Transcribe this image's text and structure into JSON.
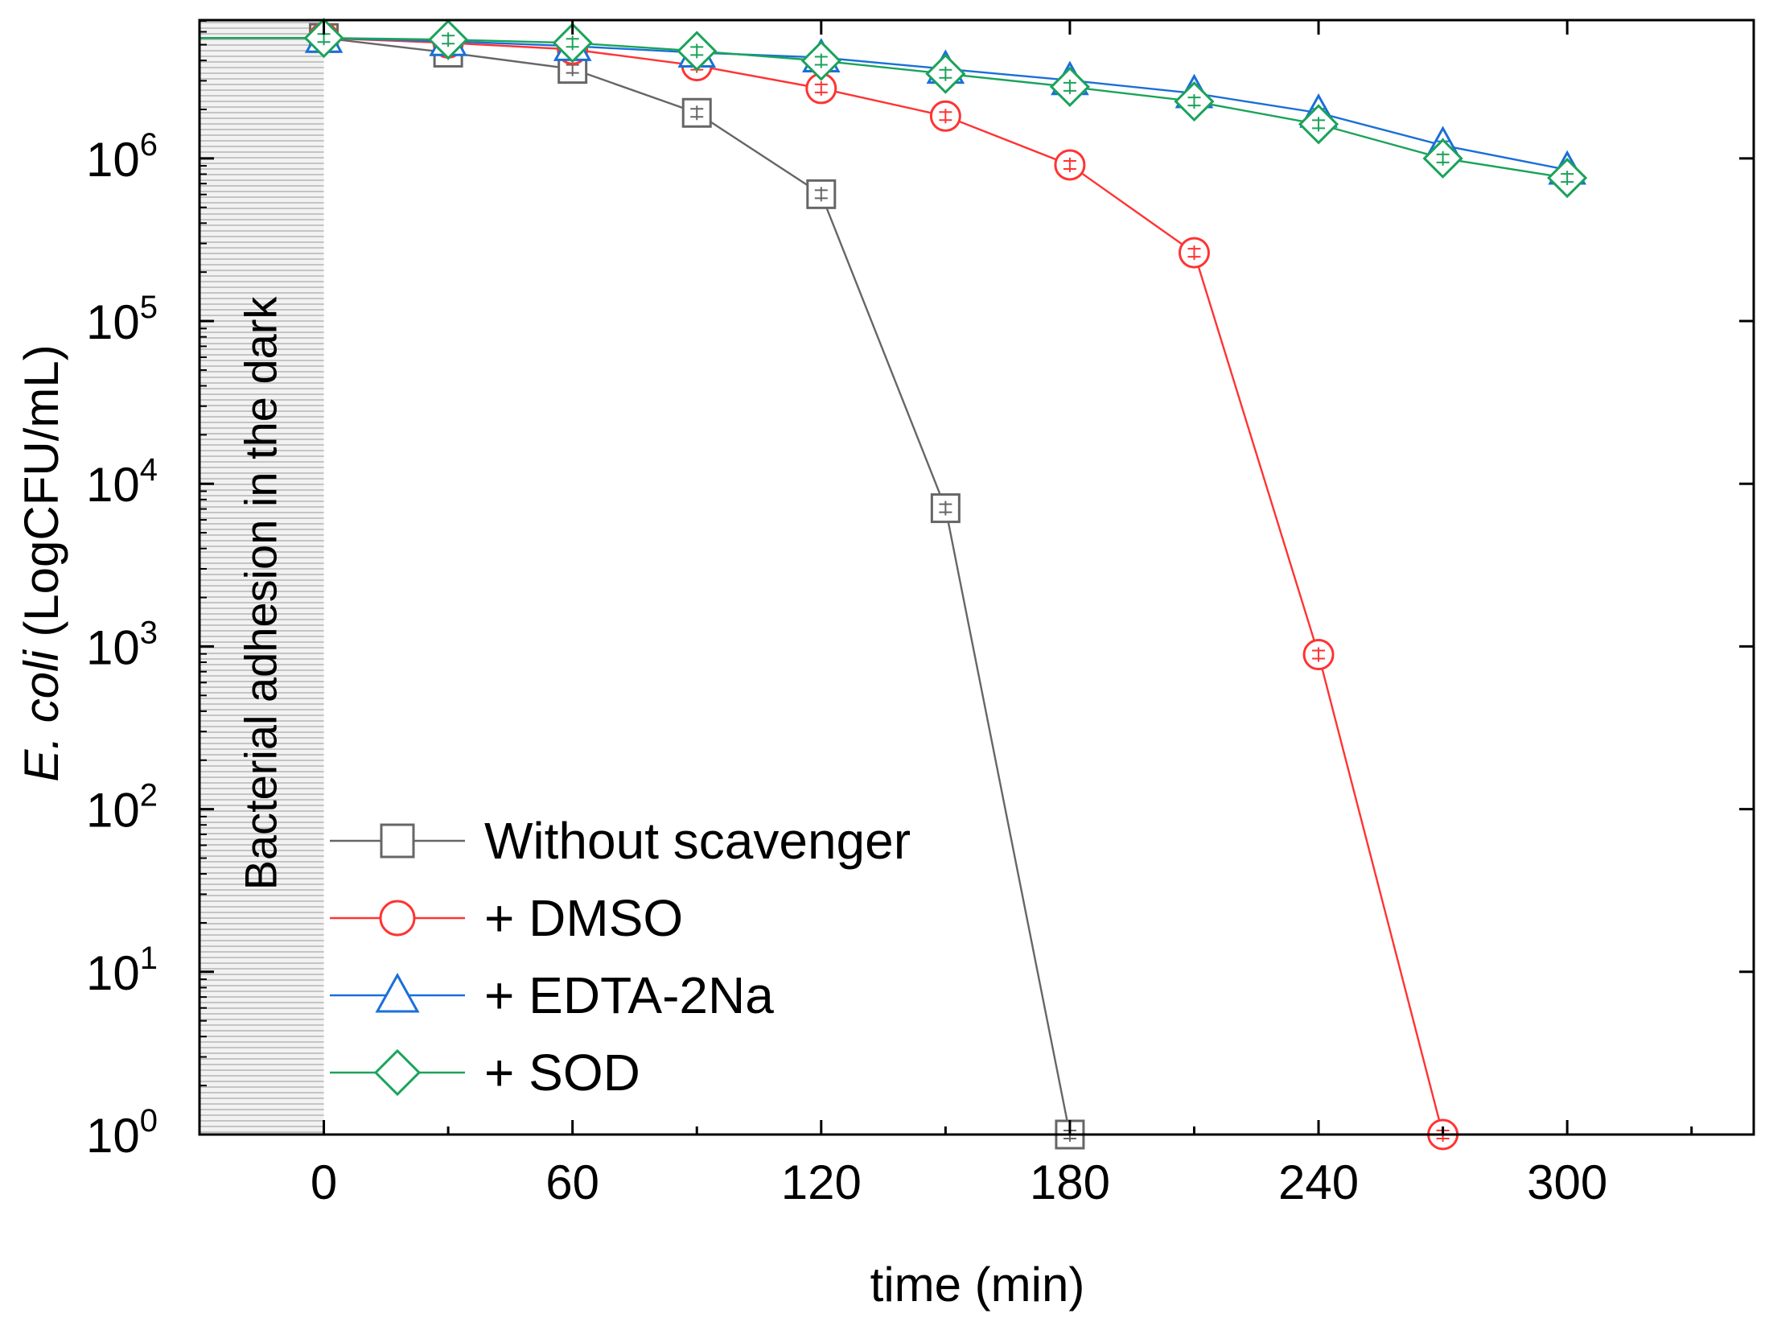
{
  "chart_data": {
    "type": "line",
    "title": "",
    "xlabel": "time (min)",
    "ylabel_italic": "E. coli",
    "ylabel_rest": " (LogCFU/mL)",
    "xlim": [
      -30,
      345
    ],
    "ylim_log10": [
      0,
      6.85
    ],
    "yscale": "log",
    "x_ticks": [
      0,
      60,
      120,
      180,
      240,
      300
    ],
    "x_tick_labels": [
      "0",
      "60",
      "120",
      "180",
      "240",
      "300"
    ],
    "y_tick_labels": [
      {
        "base": "10",
        "exp": "0"
      },
      {
        "base": "10",
        "exp": "1"
      },
      {
        "base": "10",
        "exp": "2"
      },
      {
        "base": "10",
        "exp": "3"
      },
      {
        "base": "10",
        "exp": "4"
      },
      {
        "base": "10",
        "exp": "5"
      },
      {
        "base": "10",
        "exp": "6"
      }
    ],
    "shaded_region": {
      "x_range": [
        -30,
        0
      ],
      "label": "Bacterial adhesion in the dark"
    },
    "legend_position": "bottom-left",
    "series": [
      {
        "name": "Without scavenger",
        "color": "#666666",
        "marker": "square",
        "x": [
          -30,
          0,
          30,
          60,
          90,
          120,
          150,
          180
        ],
        "log10_y": [
          6.74,
          6.74,
          6.65,
          6.55,
          6.28,
          5.78,
          3.85,
          0.0
        ]
      },
      {
        "name": "+ DMSO",
        "color": "#ff3333",
        "marker": "circle",
        "x": [
          -30,
          0,
          30,
          60,
          90,
          120,
          150,
          180,
          210,
          240,
          270
        ],
        "log10_y": [
          6.74,
          6.74,
          6.71,
          6.67,
          6.57,
          6.43,
          6.26,
          5.96,
          5.42,
          2.95,
          0.0
        ]
      },
      {
        "name": "+ EDTA-2Na",
        "color": "#1a6fd8",
        "marker": "triangle",
        "x": [
          -30,
          0,
          30,
          60,
          90,
          120,
          150,
          180,
          210,
          240,
          270,
          300
        ],
        "log10_y": [
          6.74,
          6.74,
          6.72,
          6.69,
          6.65,
          6.62,
          6.55,
          6.48,
          6.4,
          6.28,
          6.08,
          5.93
        ]
      },
      {
        "name": "+ SOD",
        "color": "#1aa35a",
        "marker": "diamond",
        "x": [
          -30,
          0,
          30,
          60,
          90,
          120,
          150,
          180,
          210,
          240,
          270,
          300
        ],
        "log10_y": [
          6.74,
          6.74,
          6.73,
          6.71,
          6.66,
          6.6,
          6.52,
          6.44,
          6.35,
          6.21,
          6.0,
          5.88
        ]
      }
    ]
  }
}
